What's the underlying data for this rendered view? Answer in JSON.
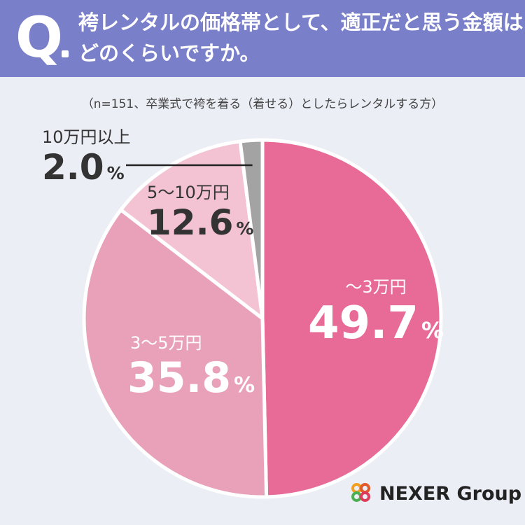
{
  "header": {
    "q_mark": "Q",
    "question_line1": "袴レンタルの価格帯として、適正だと思う金額は",
    "question_line2": "どのくらいですか。"
  },
  "note": "（n=151、卒業式で袴を着る（着せる）としたらレンタルする方）",
  "chart_data": {
    "type": "pie",
    "title": "袴レンタルの価格帯として、適正だと思う金額はどのくらいですか。",
    "unit": "%",
    "slices": [
      {
        "label": "〜3万円",
        "value": 49.7,
        "value_text": "49.7",
        "color": "#e76b96"
      },
      {
        "label": "3〜5万円",
        "value": 35.8,
        "value_text": "35.8",
        "color": "#e9a1ba"
      },
      {
        "label": "5〜10万円",
        "value": 12.6,
        "value_text": "12.6",
        "color": "#f3c3d3"
      },
      {
        "label": "10万円以上",
        "value": 2.0,
        "value_text": "2.0",
        "color": "#a3a3a3"
      }
    ]
  },
  "logo": {
    "text": "NEXER Group"
  }
}
